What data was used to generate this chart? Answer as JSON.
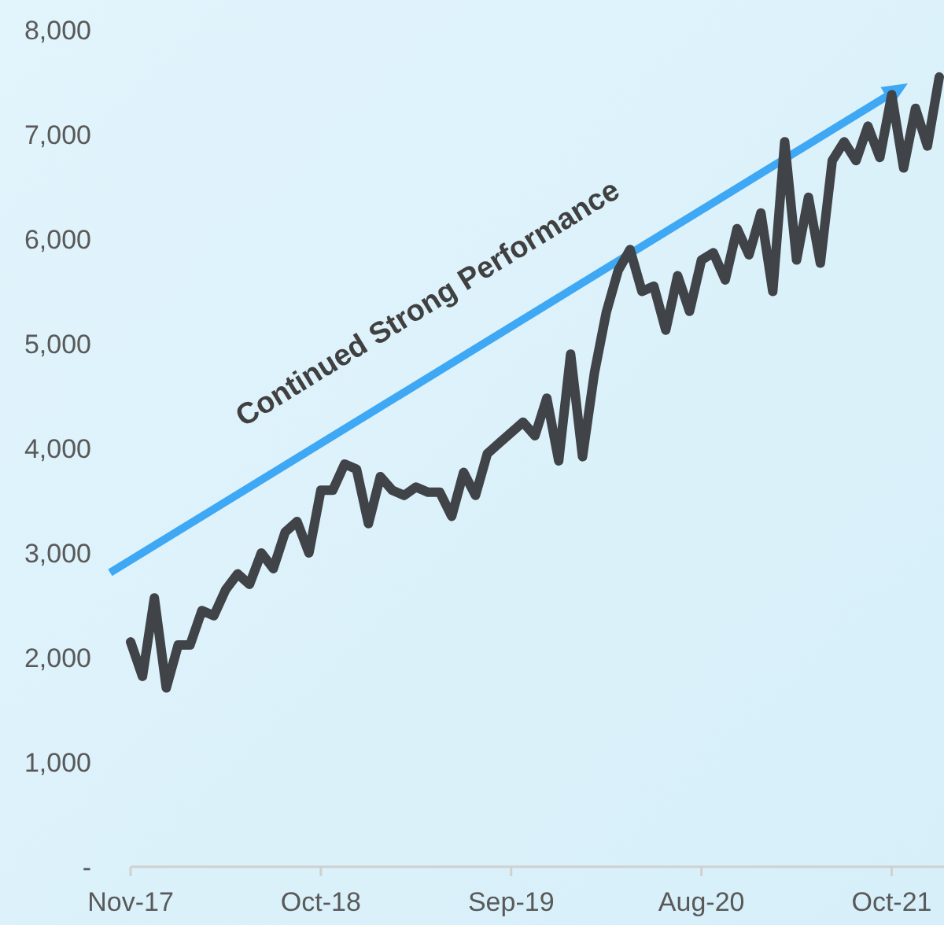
{
  "chart_data": {
    "type": "line",
    "categories": [
      "Nov-17",
      null,
      null,
      null,
      null,
      null,
      null,
      null,
      null,
      null,
      null,
      null,
      null,
      null,
      null,
      null,
      "Oct-18",
      null,
      null,
      null,
      null,
      null,
      null,
      null,
      null,
      null,
      null,
      null,
      null,
      null,
      null,
      null,
      "Sep-19",
      null,
      null,
      null,
      null,
      null,
      null,
      null,
      null,
      null,
      null,
      null,
      null,
      null,
      null,
      null,
      "Aug-20",
      null,
      null,
      null,
      null,
      null,
      null,
      null,
      null,
      null,
      null,
      null,
      null,
      null,
      null,
      null,
      "Oct-21",
      null,
      null,
      null,
      null
    ],
    "series": [
      {
        "color": "#404347",
        "values": [
          2150,
          1820,
          2570,
          1710,
          2120,
          2120,
          2450,
          2400,
          2650,
          2800,
          2700,
          3000,
          2850,
          3200,
          3300,
          3000,
          3600,
          3600,
          3850,
          3800,
          3280,
          3730,
          3600,
          3550,
          3630,
          3580,
          3580,
          3350,
          3770,
          3550,
          3950,
          4050,
          4150,
          4250,
          4120,
          4480,
          3880,
          4900,
          3920,
          4720,
          5300,
          5700,
          5900,
          5500,
          5550,
          5130,
          5650,
          5310,
          5800,
          5870,
          5610,
          6100,
          5850,
          6250,
          5500,
          6930,
          5800,
          6400,
          5770,
          6750,
          6930,
          6750,
          7080,
          6780,
          7380,
          6680,
          7250,
          6890,
          7550
        ]
      }
    ],
    "ylim": [
      0,
      8000
    ],
    "yticks": [
      {
        "value": 0,
        "label": "-"
      },
      {
        "value": 1000,
        "label": "1,000"
      },
      {
        "value": 2000,
        "label": "2,000"
      },
      {
        "value": 3000,
        "label": "3,000"
      },
      {
        "value": 4000,
        "label": "4,000"
      },
      {
        "value": 5000,
        "label": "5,000"
      },
      {
        "value": 6000,
        "label": "6,000"
      },
      {
        "value": 7000,
        "label": "7,000"
      },
      {
        "value": 8000,
        "label": "8,000"
      }
    ],
    "grid": false,
    "marker": "none",
    "line_style": "solid",
    "annotations": [
      "Continued Strong Performance"
    ]
  }
}
